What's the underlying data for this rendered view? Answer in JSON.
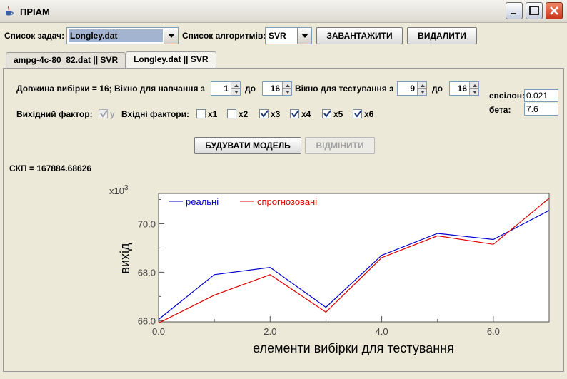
{
  "window": {
    "title": "ПРІАМ"
  },
  "toolbar": {
    "task_list_label": "Список задач:",
    "task_value": "Longley.dat",
    "algo_list_label": "Список алгоритмів:",
    "algo_value": "SVR",
    "load_label": "ЗАВАНТАЖИТИ",
    "delete_label": "ВИДАЛИТИ"
  },
  "tabs": [
    {
      "label": "ampg-4c-80_82.dat || SVR",
      "active": false
    },
    {
      "label": "Longley.dat || SVR",
      "active": true
    }
  ],
  "params": {
    "sample_length_label": "Довжина вибірки = 16;",
    "train_window_label": "Вікно для навчання з",
    "train_from": "1",
    "to_label": "до",
    "train_to": "16",
    "test_window_label": "Вікно для тестування з",
    "test_from": "9",
    "test_to": "16",
    "epsilon_label": "епсілон:",
    "epsilon": "0.021",
    "beta_label": "бета:",
    "beta": "7.6"
  },
  "factors": {
    "output_label": "Вихідний фактор:",
    "output_factor": {
      "label": "y",
      "checked": true,
      "disabled": true
    },
    "input_label": "Вхідні фактори:",
    "inputs": [
      {
        "label": "x1",
        "checked": false
      },
      {
        "label": "x2",
        "checked": false
      },
      {
        "label": "x3",
        "checked": true
      },
      {
        "label": "x4",
        "checked": true
      },
      {
        "label": "x5",
        "checked": true
      },
      {
        "label": "x6",
        "checked": true
      }
    ]
  },
  "actions": {
    "build_label": "БУДУВАТИ МОДЕЛЬ",
    "cancel_label": "ВІДМІНИТИ"
  },
  "result": {
    "rmse_text": "СКП = 167884.68626"
  },
  "chart_data": {
    "type": "line",
    "multiplier_label": "x10",
    "multiplier_exp": "3",
    "xlabel": "елементи вибірки для тестування",
    "ylabel": "вихід",
    "xlim": [
      0,
      7
    ],
    "ylim": [
      65.95,
      71.25
    ],
    "xticks": [
      0,
      2,
      4,
      6
    ],
    "xtick_labels": [
      "0.0",
      "2.0",
      "4.0",
      "6.0"
    ],
    "yticks": [
      66,
      68,
      70
    ],
    "ytick_labels": [
      "66.0",
      "68.0",
      "70.0"
    ],
    "legend_position": "top-left",
    "x": [
      0,
      1,
      2,
      3,
      4,
      5,
      6,
      7
    ],
    "series": [
      {
        "name": "реальні",
        "color": "#0000cc",
        "values": [
          66.05,
          67.9,
          68.2,
          66.55,
          68.7,
          69.6,
          69.35,
          70.55
        ]
      },
      {
        "name": "спрогнозовані",
        "color": "#dd0000",
        "values": [
          65.9,
          67.05,
          67.9,
          66.35,
          68.6,
          69.5,
          69.15,
          71.05
        ]
      }
    ]
  }
}
